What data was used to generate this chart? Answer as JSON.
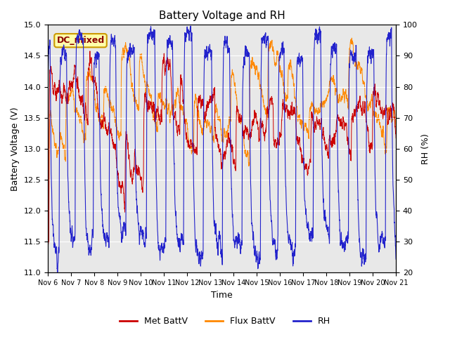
{
  "title": "Battery Voltage and RH",
  "xlabel": "Time",
  "ylabel_left": "Battery Voltage (V)",
  "ylabel_right": "RH (%)",
  "ylim_left": [
    11.0,
    15.0
  ],
  "ylim_right": [
    20,
    100
  ],
  "yticks_left": [
    11.0,
    11.5,
    12.0,
    12.5,
    13.0,
    13.5,
    14.0,
    14.5,
    15.0
  ],
  "yticks_right": [
    20,
    30,
    40,
    50,
    60,
    70,
    80,
    90,
    100
  ],
  "xtick_labels": [
    "Nov 6",
    "Nov 7",
    "Nov 8",
    "Nov 9",
    "Nov 10",
    "Nov 11",
    "Nov 12",
    "Nov 13",
    "Nov 14",
    "Nov 15",
    "Nov 16",
    "Nov 17",
    "Nov 18",
    "Nov 19",
    "Nov 20",
    "Nov 21"
  ],
  "color_met": "#CC0000",
  "color_flux": "#FF8800",
  "color_rh": "#2222CC",
  "bg_color": "#E8E8E8",
  "fig_bg": "#FFFFFF",
  "legend_labels": [
    "Met BattV",
    "Flux BattV",
    "RH"
  ],
  "annotation_text": "DC_mixed",
  "annotation_bg": "#FFFFAA",
  "annotation_edge": "#CC9900"
}
